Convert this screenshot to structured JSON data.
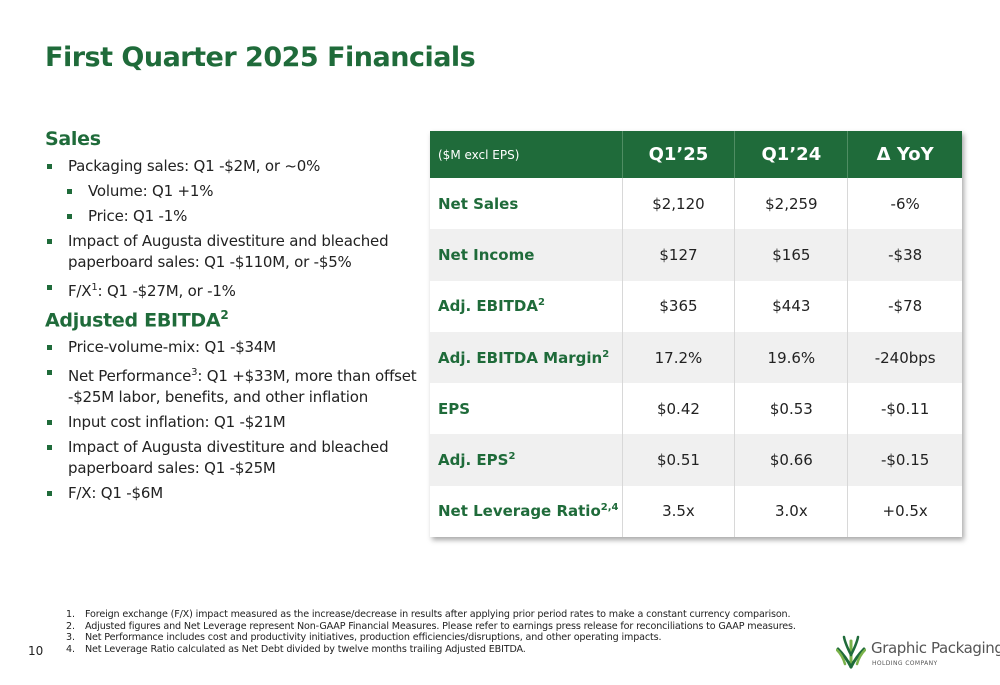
{
  "title": "First Quarter 2025 Financials",
  "sales": {
    "heading": "Sales",
    "bullets": {
      "packaging": "Packaging sales: Q1 -$2M, or ~0%",
      "volume": "Volume: Q1 +1%",
      "price": "Price: Q1 -1%",
      "augusta": "Impact of Augusta divestiture and bleached paperboard sales: Q1 -$110M, or -$5%",
      "fx_label": "F/X",
      "fx_sup": "1",
      "fx_rest": ": Q1 -$27M, or -1%"
    }
  },
  "ebitda": {
    "heading": "Adjusted EBITDA",
    "heading_sup": "2",
    "bullets": {
      "pvm": "Price-volume-mix: Q1 -$34M",
      "netperf_label": "Net Performance",
      "netperf_sup": "3",
      "netperf_rest": ": Q1 +$33M, more than offset -$25M labor, benefits, and other inflation",
      "input_cost": "Input cost inflation: Q1 -$21M",
      "augusta": "Impact of Augusta divestiture and bleached paperboard sales: Q1 -$25M",
      "fx": "F/X: Q1 -$6M"
    }
  },
  "table": {
    "header": {
      "unit": "($M excl EPS)",
      "q1_25": "Q1’25",
      "q1_24": "Q1’24",
      "yoy": "Δ YoY"
    },
    "rows": [
      {
        "label": "Net Sales",
        "sup": "",
        "q1_25": "$2,120",
        "q1_24": "$2,259",
        "yoy": "-6%"
      },
      {
        "label": "Net Income",
        "sup": "",
        "q1_25": "$127",
        "q1_24": "$165",
        "yoy": "-$38"
      },
      {
        "label": "Adj. EBITDA",
        "sup": "2",
        "q1_25": "$365",
        "q1_24": "$443",
        "yoy": "-$78"
      },
      {
        "label": "Adj. EBITDA Margin",
        "sup": "2",
        "q1_25": "17.2%",
        "q1_24": "19.6%",
        "yoy": "-240bps"
      },
      {
        "label": "EPS",
        "sup": "",
        "q1_25": "$0.42",
        "q1_24": "$0.53",
        "yoy": "-$0.11"
      },
      {
        "label": "Adj. EPS",
        "sup": "2",
        "q1_25": "$0.51",
        "q1_24": "$0.66",
        "yoy": "-$0.15"
      },
      {
        "label": "Net Leverage Ratio",
        "sup": "2,4",
        "q1_25": "3.5x",
        "q1_24": "3.0x",
        "yoy": "+0.5x"
      }
    ]
  },
  "footnotes": [
    {
      "num": "1.",
      "text": "Foreign exchange (F/X) impact measured as the increase/decrease in results after applying prior period rates to make a constant currency comparison."
    },
    {
      "num": "2.",
      "text": "Adjusted figures and Net Leverage represent Non-GAAP Financial Measures. Please refer to earnings press release for reconciliations to GAAP measures."
    },
    {
      "num": "3.",
      "text": "Net Performance includes cost and productivity initiatives, production efficiencies/disruptions, and other operating impacts."
    },
    {
      "num": "4.",
      "text": "Net Leverage Ratio calculated as Net Debt divided by twelve months trailing Adjusted EBITDA."
    }
  ],
  "page_number": "10",
  "logo": {
    "name": "Graphic Packaging",
    "sub": "HOLDING COMPANY",
    "icon": "leaf-mark-icon"
  },
  "colors": {
    "brand_green": "#1f6b3a",
    "row_alt": "#f0f0f0"
  }
}
